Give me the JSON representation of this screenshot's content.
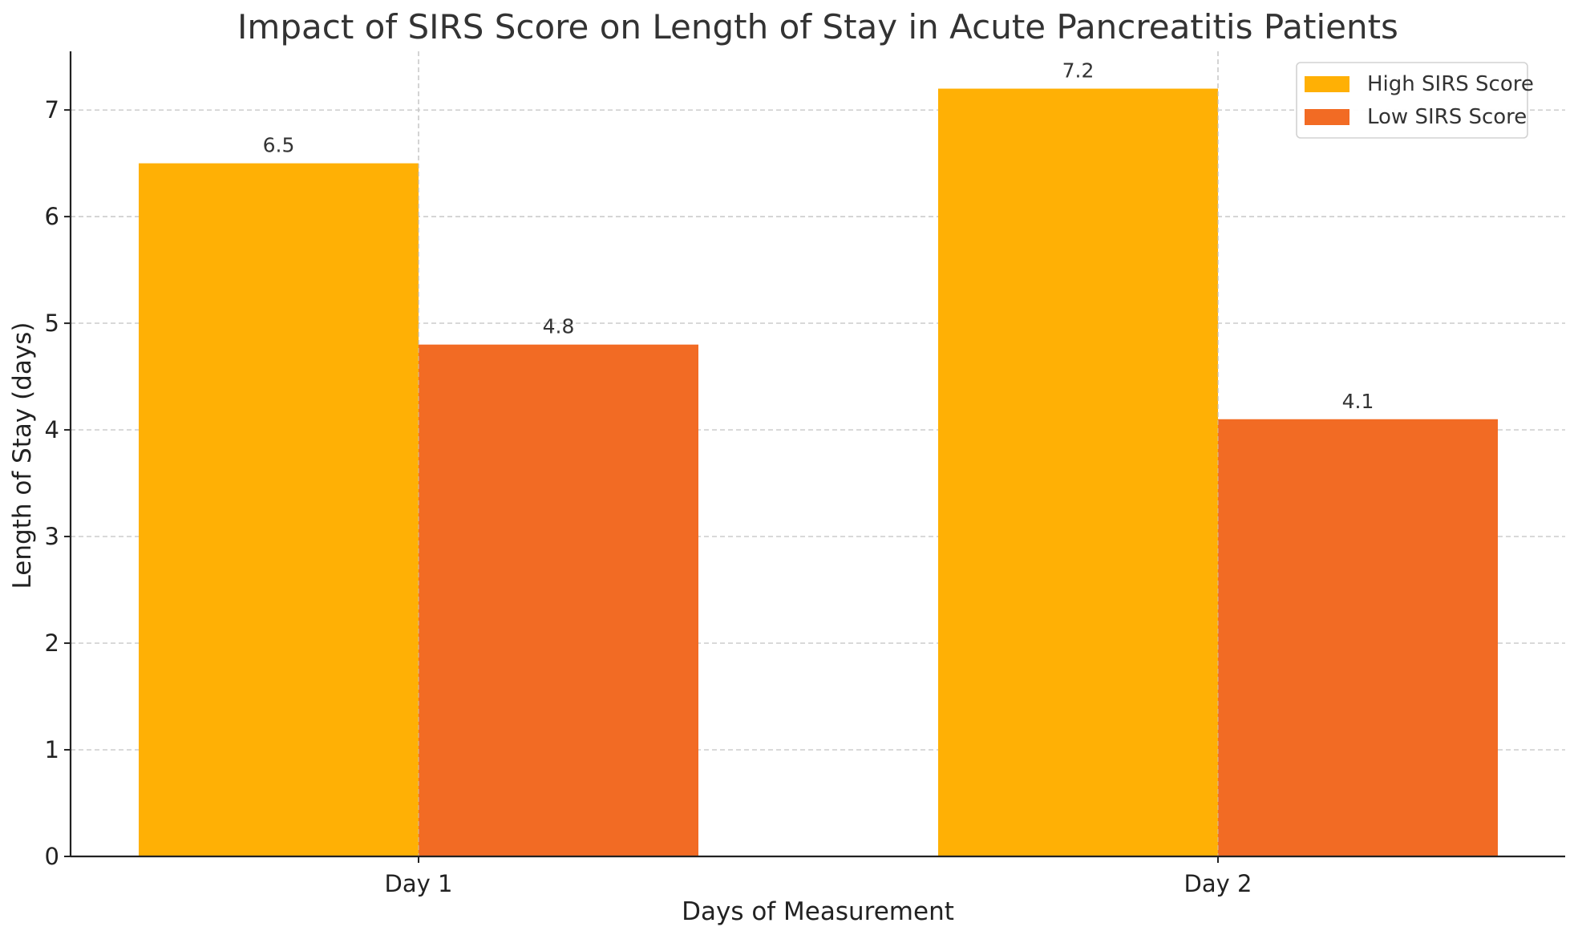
{
  "chart_data": {
    "type": "bar",
    "title": "Impact of SIRS Score on Length of Stay in Acute Pancreatitis Patients",
    "xlabel": "Days of Measurement",
    "ylabel": "Length of Stay (days)",
    "categories": [
      "Day 1",
      "Day 2"
    ],
    "series": [
      {
        "name": "High SIRS Score",
        "values": [
          6.5,
          7.2
        ],
        "color": "#FFB005"
      },
      {
        "name": "Low SIRS Score",
        "values": [
          4.8,
          4.1
        ],
        "color": "#F26B24"
      }
    ],
    "ylim": [
      0,
      7.55
    ],
    "yticks": [
      "0",
      "1",
      "2",
      "3",
      "4",
      "5",
      "6",
      "7"
    ],
    "grid": true,
    "legend_position": "top-right"
  }
}
